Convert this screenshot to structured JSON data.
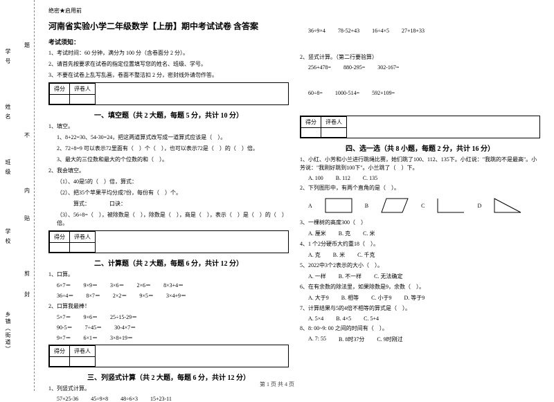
{
  "binding": {
    "town": "乡镇（街道）",
    "school": "学校",
    "class": "班级",
    "name": "姓名",
    "id": "学号",
    "dash_words": [
      "封",
      "剪",
      "贴",
      "内",
      "不",
      "题"
    ],
    "dash_pos": [
      420,
      390,
      310,
      270,
      190,
      60
    ]
  },
  "secret": "绝密★启用前",
  "doc_title": "河南省实验小学二年级数学【上册】期中考试试卷 含答案",
  "notice_heading": "考试须知：",
  "notice_1": "1、考试时间：60 分钟，满分为 100 分（含卷面分 2 分）。",
  "notice_2": "2、请首先按要求在试卷的指定位置填写您的姓名、班级、学号。",
  "notice_3": "3、不要在试卷上乱写乱画，卷面不整洁扣 2 分，密封线外请勿作答。",
  "score_cells": {
    "a": "得分",
    "b": "评卷人"
  },
  "sec1": {
    "title": "一、填空题（共 2 大题，每题 5 分，共计 10 分）",
    "q1": "1、填空。",
    "q1_1": "1、8+22=30、54-30=24，把这两道算式改写成一道算式应该是（　）。",
    "q1_2": "2、72÷8=9 可以表示72里面有（　）个（　），也可以表示72是（　）的（　）倍。",
    "q1_3": "3、最大的三位数和最大的个位数的和（　）。",
    "q2": "2、我会填空。",
    "q2_1": "（1）、40是5的（　）倍，算式：",
    "q2_2": "（2）、把35个苹果平均分成7份，每份有（　）个。",
    "q2_2b": "　　　算式：　　　　口诀：",
    "q2_3": "（3）、56÷8=（　），被除数是（　），除数是（　），商是（　），表示（　）是（　）的（　）倍。"
  },
  "sec2": {
    "title": "二、计算题（共 2 大题，每题 6 分，共计 12 分）",
    "q1": "1、口算。",
    "q1_row1": [
      "6×7＝",
      "9×9＝",
      "3×6＝",
      "2×6＝",
      "8×3+4＝"
    ],
    "q1_row2": [
      "36÷4＝",
      "8×7＝",
      "2×2＝",
      "9×5＝",
      "3×4+9＝"
    ],
    "q2": "2、口算我最棒！",
    "q2_row1": [
      "5×7＝",
      "9×6＝",
      "25÷15-29＝"
    ],
    "q2_row2": [
      "90-5＝",
      "7÷45＝",
      "30-4×7＝"
    ],
    "q2_row3": [
      "9×7＝",
      "6×1＝",
      "3×8+19＝"
    ]
  },
  "sec3": {
    "title": "三、列竖式计算（共 2 大题，每题 6 分，共计 12 分）",
    "q1": "1、列竖式计算。",
    "q1_row": [
      "57+25-36",
      "45÷9×8",
      "48÷6×3",
      "15+23-11"
    ],
    "q1_row2": [
      "36÷9×4",
      "78-52+43",
      "16÷4×5",
      "27+18+33"
    ],
    "q2": "2、竖式计算。（第二行要验算）",
    "q2_row1": [
      "256+478=",
      "880-295=",
      "302-167="
    ],
    "q2_row2": [
      "60÷8=",
      "1000-514=",
      "592+109="
    ]
  },
  "sec4": {
    "title": "四、选一选（共 8 小题，每题 2 分，共计 16 分）",
    "q1": "1、小红、小芳和小兰进行跳绳比赛，她们跳了100、112、135下。小红说：\"我跳的不是最高\"。小芳说：\"我刚好跳到100下\"。小兰跳了（　）下。",
    "q1_opts": [
      "A. 100",
      "B. 112",
      "C. 135"
    ],
    "q2": "2、下列图形中，有两个直角的是（　）。",
    "shape_labels": [
      "A",
      "B",
      "C",
      "D"
    ],
    "q3": "3、一棵树的高度300（　）",
    "q3_opts": [
      "A. 厘米",
      "B. 克",
      "C. 米"
    ],
    "q4": "4、1 个2分硬币大约重18（　）。",
    "q4_opts": [
      "A. 克",
      "B. 米",
      "C. 千克"
    ],
    "q5": "5、2022中3个2表示的大小（　）。",
    "q5_opts": [
      "A. 一样",
      "B. 不一样",
      "C. 无法确定"
    ],
    "q6": "6、在有余数的除法里，如果除数是9，余数（　）。",
    "q6_opts": [
      "A. 大于9",
      "B. 相等",
      "C. 小于9",
      "D. 等于9"
    ],
    "q7": "7、计算结果与5的4倍不相等的算式是（　）。",
    "q7_opts": [
      "A. 5×4",
      "B. 4×5",
      "C. 5+4"
    ],
    "q8": "8、8: 00~9: 00 之间的时间有（　）。",
    "q8_opts": [
      "A. 7: 55",
      "B. 8时37分",
      "C. 9时刚过"
    ]
  },
  "footer": "第 1 页 共 4 页"
}
